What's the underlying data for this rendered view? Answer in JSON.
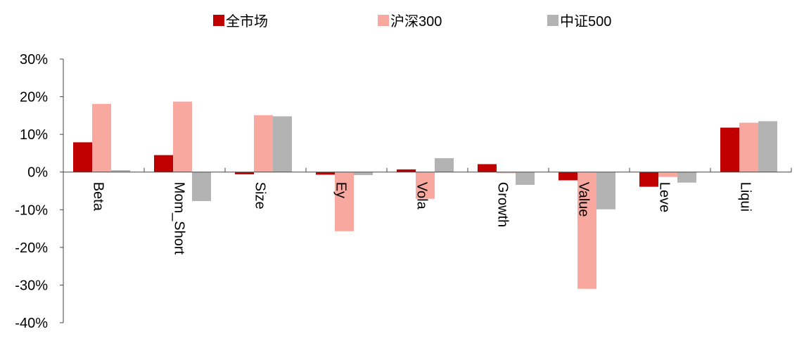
{
  "chart_data": {
    "type": "bar",
    "categories": [
      "Beta",
      "Mom_Short",
      "Size",
      "Ey",
      "Vola",
      "Growth",
      "Value",
      "Leve",
      "Liqui"
    ],
    "series": [
      {
        "name": "全市场",
        "color": "#c00000",
        "values": [
          7.9,
          4.5,
          -0.6,
          -0.7,
          0.7,
          2.1,
          -2.2,
          -3.9,
          11.8
        ]
      },
      {
        "name": "沪深300",
        "color": "#f8a89e",
        "values": [
          18.1,
          18.7,
          15.1,
          -15.7,
          -7.1,
          -0.3,
          -31.0,
          -1.3,
          13.1
        ]
      },
      {
        "name": "中证500",
        "color": "#b3b3b3",
        "values": [
          0.5,
          -7.7,
          14.8,
          -0.8,
          3.7,
          -3.4,
          -9.9,
          -2.8,
          13.5
        ]
      }
    ],
    "ylim": [
      -40,
      30
    ],
    "yticks": [
      "30%",
      "20%",
      "10%",
      "0%",
      "-10%",
      "-20%",
      "-30%",
      "-40%"
    ],
    "ytick_values": [
      30,
      20,
      10,
      0,
      -10,
      -20,
      -30,
      -40
    ],
    "legend": "top",
    "grid": false
  }
}
